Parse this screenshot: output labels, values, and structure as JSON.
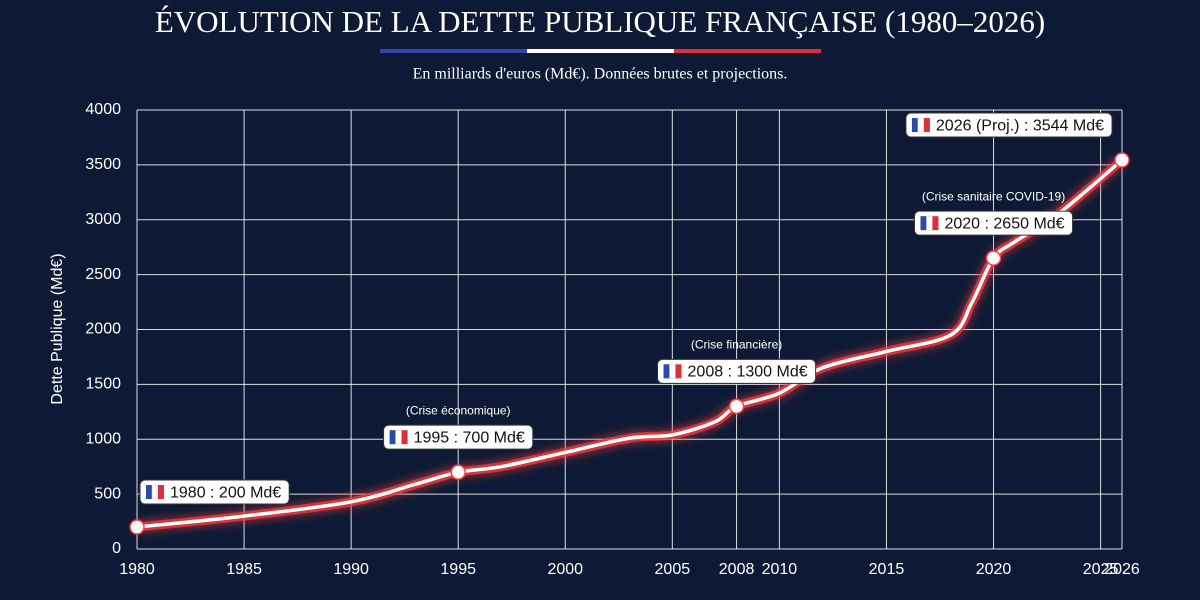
{
  "chart_data": {
    "type": "line",
    "title": "ÉVOLUTION DE LA DETTE PUBLIQUE FRANÇAISE (1980–2026)",
    "subtitle": "En milliards d'euros (Md€). Données brutes et projections.",
    "y_label": "Dette Publique (Md€)",
    "xlim": [
      1980,
      2026
    ],
    "xticks": [
      1980,
      1985,
      1990,
      1995,
      2000,
      2005,
      2008,
      2010,
      2015,
      2020,
      2025,
      2026
    ],
    "ylim": [
      0,
      4000
    ],
    "yticks": [
      0,
      500,
      1000,
      1500,
      2000,
      2500,
      3000,
      3500,
      4000
    ],
    "grid": true,
    "series": [
      {
        "name": "Dette publique",
        "color": "#ff3b3b",
        "x": [
          1980,
          1985,
          1990,
          1993,
          1995,
          1997,
          2000,
          2003,
          2005,
          2007,
          2008,
          2010,
          2012,
          2015,
          2018,
          2019,
          2020,
          2021,
          2023,
          2026
        ],
        "values": [
          200,
          300,
          430,
          590,
          700,
          750,
          880,
          1010,
          1040,
          1160,
          1300,
          1420,
          1650,
          1800,
          1950,
          2250,
          2650,
          2800,
          3050,
          3544
        ],
        "value_labels": [
          "1980 : 200 Md€",
          null,
          null,
          null,
          "1995 : 700 Md€",
          null,
          null,
          null,
          null,
          null,
          "2008 : 1300 Md€",
          null,
          null,
          null,
          null,
          null,
          "2020 : 2650 Md€",
          null,
          null,
          "2026 (Proj.) : 3544 Md€"
        ],
        "annotations": [
          null,
          null,
          null,
          null,
          "(Crise économique)",
          null,
          null,
          null,
          null,
          null,
          "(Crise financière)",
          null,
          null,
          null,
          null,
          null,
          "(Crise sanitaire COVID-19)",
          null,
          null,
          null
        ]
      }
    ]
  }
}
